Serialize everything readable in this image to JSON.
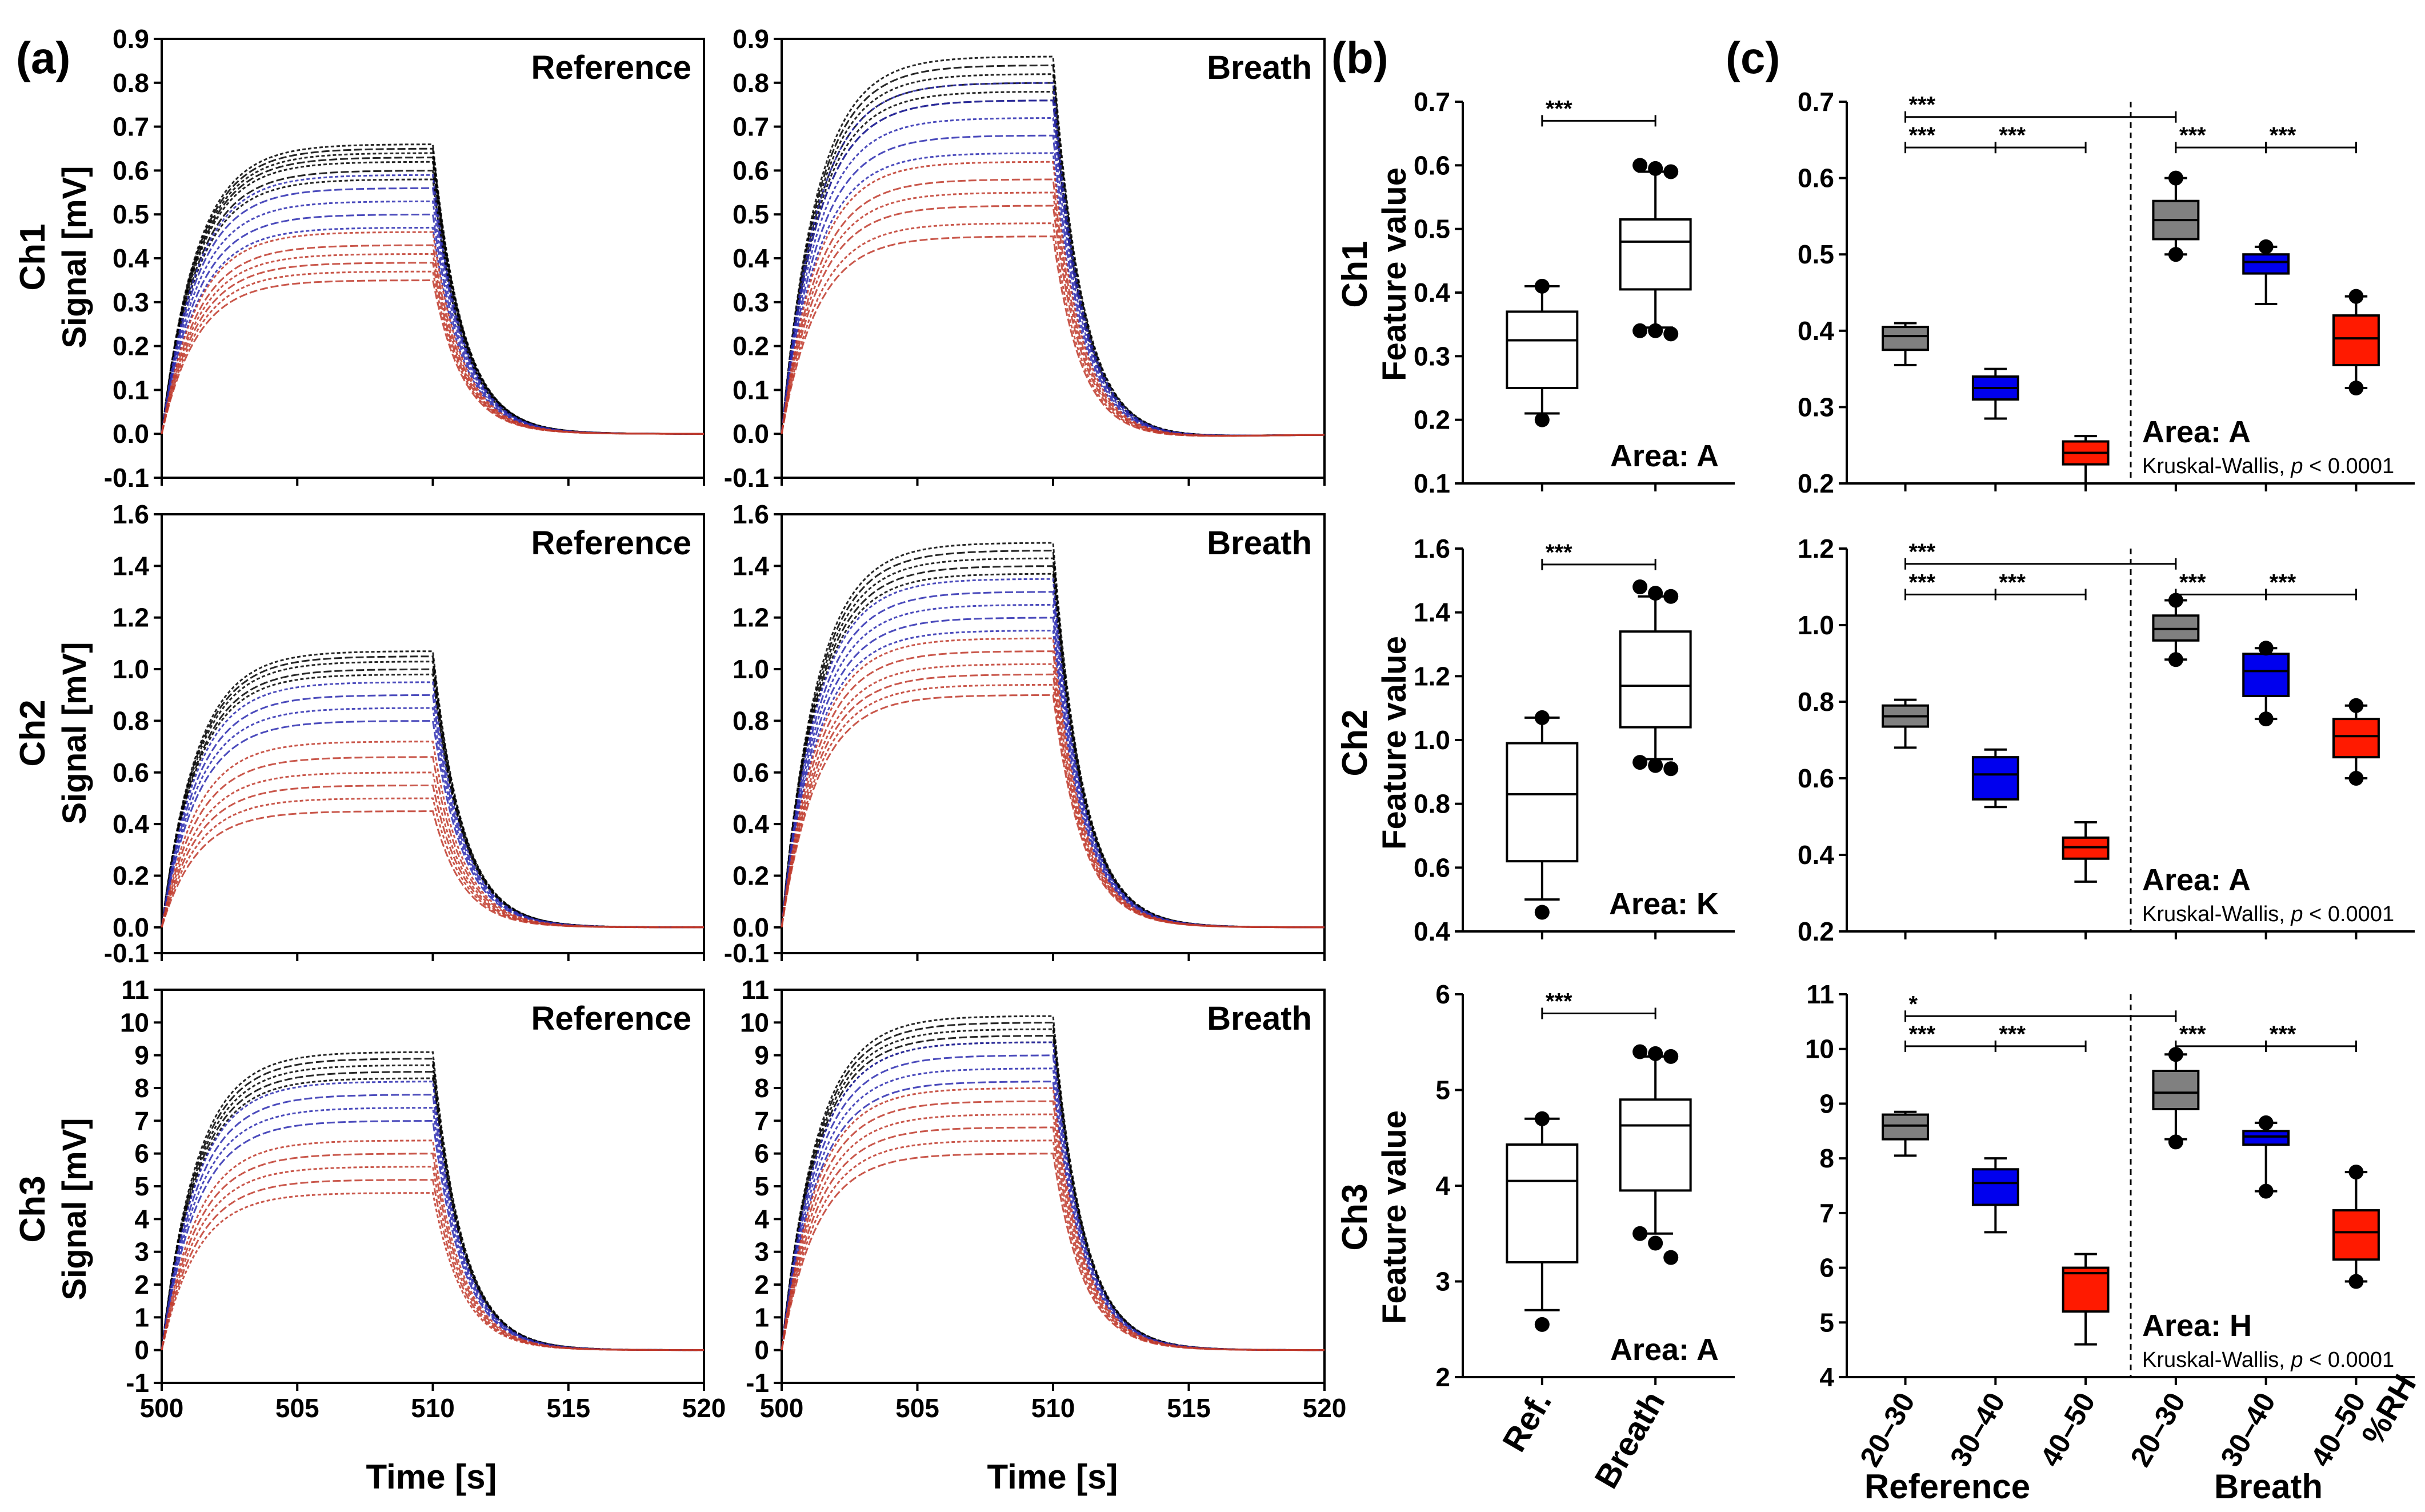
{
  "figure": {
    "panel_labels": [
      "(a)",
      "(b)",
      "(c)"
    ],
    "time_axis_label": "Time [s]",
    "signal_axis_label": "Signal [mV]",
    "feature_axis_label": "Feature value",
    "kruskal_prefix": "Kruskal-Wallis, ",
    "kruskal_p": "p",
    "kruskal_suffix": " < 0.0001",
    "rh_label": "%RH",
    "group_reference": "Reference",
    "group_breath": "Breath"
  },
  "colors": {
    "dry": "#000000",
    "mid": "#2b2bb0",
    "humid": "#c0392b",
    "box_gray": "#808080",
    "box_blue": "#0000ee",
    "box_red": "#ff1a00"
  },
  "chart_data": [
    {
      "type": "line",
      "panel": "a",
      "row": 0,
      "col": 0,
      "channel": "Ch1",
      "label": "Reference",
      "xlim": [
        500,
        520
      ],
      "ylim": [
        -0.1,
        0.9
      ],
      "xticks": [
        "500",
        "505",
        "510",
        "515",
        "520"
      ],
      "yticks": [
        "-0.1",
        "0.0",
        "0.1",
        "0.2",
        "0.3",
        "0.4",
        "0.5",
        "0.6",
        "0.7",
        "0.8",
        "0.9"
      ],
      "show_xticks": false,
      "step_off": 510,
      "groups": [
        {
          "color": "dry",
          "plateaus": [
            0.66,
            0.65,
            0.64,
            0.63,
            0.62,
            0.6,
            0.58
          ]
        },
        {
          "color": "mid",
          "plateaus": [
            0.59,
            0.56,
            0.53,
            0.5,
            0.47
          ]
        },
        {
          "color": "humid",
          "plateaus": [
            0.46,
            0.43,
            0.41,
            0.39,
            0.37,
            0.35
          ]
        }
      ],
      "undershoot": 0.0
    },
    {
      "type": "line",
      "panel": "a",
      "row": 0,
      "col": 1,
      "channel": "Ch1",
      "label": "Breath",
      "xlim": [
        500,
        520
      ],
      "ylim": [
        -0.1,
        0.9
      ],
      "xticks": [
        "500",
        "505",
        "510",
        "515",
        "520"
      ],
      "yticks": [
        "-0.1",
        "0.0",
        "0.1",
        "0.2",
        "0.3",
        "0.4",
        "0.5",
        "0.6",
        "0.7",
        "0.8",
        "0.9"
      ],
      "show_xticks": false,
      "step_off": 510,
      "groups": [
        {
          "color": "dry",
          "plateaus": [
            0.86,
            0.84,
            0.82,
            0.8,
            0.78,
            0.76
          ]
        },
        {
          "color": "mid",
          "plateaus": [
            0.8,
            0.76,
            0.72,
            0.68,
            0.64
          ]
        },
        {
          "color": "humid",
          "plateaus": [
            0.62,
            0.58,
            0.55,
            0.52,
            0.48,
            0.45
          ]
        }
      ],
      "undershoot": 0.03
    },
    {
      "type": "line",
      "panel": "a",
      "row": 1,
      "col": 0,
      "channel": "Ch2",
      "label": "Reference",
      "xlim": [
        500,
        520
      ],
      "ylim": [
        -0.1,
        1.6
      ],
      "xticks": [
        "500",
        "505",
        "510",
        "515",
        "520"
      ],
      "yticks": [
        "-0.1",
        "0.0",
        "0.2",
        "0.4",
        "0.6",
        "0.8",
        "1.0",
        "1.2",
        "1.4",
        "1.6"
      ],
      "show_xticks": false,
      "step_off": 510,
      "groups": [
        {
          "color": "dry",
          "plateaus": [
            1.07,
            1.05,
            1.03,
            1.0,
            0.98
          ]
        },
        {
          "color": "mid",
          "plateaus": [
            0.95,
            0.9,
            0.85,
            0.8
          ]
        },
        {
          "color": "humid",
          "plateaus": [
            0.72,
            0.66,
            0.6,
            0.55,
            0.5,
            0.45
          ]
        }
      ],
      "undershoot": 0.0
    },
    {
      "type": "line",
      "panel": "a",
      "row": 1,
      "col": 1,
      "channel": "Ch2",
      "label": "Breath",
      "xlim": [
        500,
        520
      ],
      "ylim": [
        -0.1,
        1.6
      ],
      "xticks": [
        "500",
        "505",
        "510",
        "515",
        "520"
      ],
      "yticks": [
        "-0.1",
        "0.0",
        "0.2",
        "0.4",
        "0.6",
        "0.8",
        "1.0",
        "1.2",
        "1.4",
        "1.6"
      ],
      "show_xticks": false,
      "step_off": 510,
      "groups": [
        {
          "color": "dry",
          "plateaus": [
            1.49,
            1.46,
            1.43,
            1.4,
            1.37
          ]
        },
        {
          "color": "mid",
          "plateaus": [
            1.35,
            1.3,
            1.25,
            1.2,
            1.15
          ]
        },
        {
          "color": "humid",
          "plateaus": [
            1.12,
            1.07,
            1.02,
            0.98,
            0.94,
            0.9
          ]
        }
      ],
      "undershoot": 0.0
    },
    {
      "type": "line",
      "panel": "a",
      "row": 2,
      "col": 0,
      "channel": "Ch3",
      "label": "Reference",
      "xlim": [
        500,
        520
      ],
      "ylim": [
        -1,
        11
      ],
      "xticks": [
        "500",
        "505",
        "510",
        "515",
        "520"
      ],
      "yticks": [
        "-1",
        "0",
        "1",
        "2",
        "3",
        "4",
        "5",
        "6",
        "7",
        "8",
        "9",
        "10",
        "11"
      ],
      "show_xticks": true,
      "step_off": 510,
      "groups": [
        {
          "color": "dry",
          "plateaus": [
            9.1,
            8.9,
            8.7,
            8.5,
            8.3
          ]
        },
        {
          "color": "mid",
          "plateaus": [
            8.2,
            7.8,
            7.4,
            7.0
          ]
        },
        {
          "color": "humid",
          "plateaus": [
            6.4,
            6.0,
            5.6,
            5.2,
            4.8
          ]
        }
      ],
      "undershoot": 0.0
    },
    {
      "type": "line",
      "panel": "a",
      "row": 2,
      "col": 1,
      "channel": "Ch3",
      "label": "Breath",
      "xlim": [
        500,
        520
      ],
      "ylim": [
        -1,
        11
      ],
      "xticks": [
        "500",
        "505",
        "510",
        "515",
        "520"
      ],
      "yticks": [
        "-1",
        "0",
        "1",
        "2",
        "3",
        "4",
        "5",
        "6",
        "7",
        "8",
        "9",
        "10",
        "11"
      ],
      "show_xticks": true,
      "step_off": 510,
      "groups": [
        {
          "color": "dry",
          "plateaus": [
            10.2,
            10.0,
            9.8,
            9.6,
            9.4
          ]
        },
        {
          "color": "mid",
          "plateaus": [
            9.4,
            9.0,
            8.6,
            8.2
          ]
        },
        {
          "color": "humid",
          "plateaus": [
            8.0,
            7.6,
            7.2,
            6.8,
            6.4,
            6.0
          ]
        }
      ],
      "undershoot": 0.0
    },
    {
      "type": "box",
      "panel": "b",
      "row": 0,
      "channel": "Ch1",
      "ylim": [
        0.1,
        0.7
      ],
      "yticks": [
        "0.1",
        "0.2",
        "0.3",
        "0.4",
        "0.5",
        "0.6",
        "0.7"
      ],
      "categories": [
        "Ref.",
        "Breath"
      ],
      "show_categories": false,
      "boxes": [
        {
          "q1": 0.25,
          "median": 0.325,
          "q3": 0.37,
          "wlow": 0.21,
          "whigh": 0.41,
          "outliers": [
            0.2,
            0.41
          ]
        },
        {
          "q1": 0.405,
          "median": 0.48,
          "q3": 0.515,
          "wlow": 0.345,
          "whigh": 0.59,
          "outliers": [
            0.34,
            0.34,
            0.335,
            0.6,
            0.595,
            0.59
          ]
        }
      ],
      "significance": [
        {
          "from": 0,
          "to": 1,
          "y": 0.67,
          "text": "***"
        }
      ],
      "area": "Area: A"
    },
    {
      "type": "box",
      "panel": "b",
      "row": 1,
      "channel": "Ch2",
      "ylim": [
        0.4,
        1.6
      ],
      "yticks": [
        "0.4",
        "0.6",
        "0.8",
        "1.0",
        "1.2",
        "1.4",
        "1.6"
      ],
      "categories": [
        "Ref.",
        "Breath"
      ],
      "show_categories": false,
      "boxes": [
        {
          "q1": 0.62,
          "median": 0.83,
          "q3": 0.99,
          "wlow": 0.5,
          "whigh": 1.07,
          "outliers": [
            0.46,
            1.07
          ]
        },
        {
          "q1": 1.04,
          "median": 1.17,
          "q3": 1.34,
          "wlow": 0.94,
          "whigh": 1.45,
          "outliers": [
            0.93,
            0.92,
            0.91,
            1.48,
            1.46,
            1.45
          ]
        }
      ],
      "significance": [
        {
          "from": 0,
          "to": 1,
          "y": 1.55,
          "text": "***"
        }
      ],
      "area": "Area: K"
    },
    {
      "type": "box",
      "panel": "b",
      "row": 2,
      "channel": "Ch3",
      "ylim": [
        2,
        6
      ],
      "yticks": [
        "2",
        "3",
        "4",
        "5",
        "6"
      ],
      "categories": [
        "Ref.",
        "Breath"
      ],
      "show_categories": true,
      "boxes": [
        {
          "q1": 3.2,
          "median": 4.05,
          "q3": 4.43,
          "wlow": 2.7,
          "whigh": 4.7,
          "outliers": [
            2.55,
            4.7
          ]
        },
        {
          "q1": 3.95,
          "median": 4.63,
          "q3": 4.9,
          "wlow": 3.5,
          "whigh": 5.35,
          "outliers": [
            3.5,
            3.4,
            3.25,
            5.4,
            5.38,
            5.35
          ]
        }
      ],
      "significance": [
        {
          "from": 0,
          "to": 1,
          "y": 5.8,
          "text": "***"
        }
      ],
      "area": "Area: A"
    },
    {
      "type": "box",
      "panel": "c",
      "row": 0,
      "channel": "Ch1",
      "ylim": [
        0.2,
        0.7
      ],
      "yticks": [
        "0.2",
        "0.3",
        "0.4",
        "0.5",
        "0.6",
        "0.7"
      ],
      "categories": [
        "20–30",
        "30–40",
        "40–50",
        "20–30",
        "30–40",
        "40–50"
      ],
      "show_categories": false,
      "boxes": [
        {
          "fill": "box_gray",
          "q1": 0.375,
          "median": 0.393,
          "q3": 0.405,
          "wlow": 0.355,
          "whigh": 0.41,
          "outliers": []
        },
        {
          "fill": "box_blue",
          "q1": 0.31,
          "median": 0.325,
          "q3": 0.34,
          "wlow": 0.285,
          "whigh": 0.35,
          "outliers": []
        },
        {
          "fill": "box_red",
          "q1": 0.225,
          "median": 0.24,
          "q3": 0.255,
          "wlow": 0.2,
          "whigh": 0.262,
          "outliers": []
        },
        {
          "fill": "box_gray",
          "q1": 0.52,
          "median": 0.545,
          "q3": 0.57,
          "wlow": 0.5,
          "whigh": 0.6,
          "outliers": [
            0.5,
            0.6
          ]
        },
        {
          "fill": "box_blue",
          "q1": 0.475,
          "median": 0.49,
          "q3": 0.5,
          "wlow": 0.435,
          "whigh": 0.51,
          "outliers": [
            0.51
          ]
        },
        {
          "fill": "box_red",
          "q1": 0.355,
          "median": 0.39,
          "q3": 0.42,
          "wlow": 0.325,
          "whigh": 0.445,
          "outliers": [
            0.445,
            0.325
          ]
        }
      ],
      "significance": [
        {
          "from": 0,
          "to": 3,
          "y": 0.68,
          "text": "***"
        },
        {
          "from": 0,
          "to": 1,
          "y": 0.64,
          "text": "***"
        },
        {
          "from": 1,
          "to": 2,
          "y": 0.64,
          "text": "***"
        },
        {
          "from": 3,
          "to": 4,
          "y": 0.64,
          "text": "***"
        },
        {
          "from": 4,
          "to": 5,
          "y": 0.64,
          "text": "***"
        }
      ],
      "area": "Area: A",
      "kruskal": true
    },
    {
      "type": "box",
      "panel": "c",
      "row": 1,
      "channel": "Ch2",
      "ylim": [
        0.2,
        1.2
      ],
      "yticks": [
        "0.2",
        "0.4",
        "0.6",
        "0.8",
        "1.0",
        "1.2"
      ],
      "categories": [
        "20–30",
        "30–40",
        "40–50",
        "20–30",
        "30–40",
        "40–50"
      ],
      "show_categories": false,
      "boxes": [
        {
          "fill": "box_gray",
          "q1": 0.735,
          "median": 0.762,
          "q3": 0.79,
          "wlow": 0.68,
          "whigh": 0.805,
          "outliers": []
        },
        {
          "fill": "box_blue",
          "q1": 0.545,
          "median": 0.61,
          "q3": 0.655,
          "wlow": 0.525,
          "whigh": 0.675,
          "outliers": []
        },
        {
          "fill": "box_red",
          "q1": 0.39,
          "median": 0.42,
          "q3": 0.445,
          "wlow": 0.33,
          "whigh": 0.485,
          "outliers": []
        },
        {
          "fill": "box_gray",
          "q1": 0.96,
          "median": 0.99,
          "q3": 1.025,
          "wlow": 0.91,
          "whigh": 1.065,
          "outliers": [
            0.91,
            1.065
          ]
        },
        {
          "fill": "box_blue",
          "q1": 0.815,
          "median": 0.88,
          "q3": 0.925,
          "wlow": 0.755,
          "whigh": 0.94,
          "outliers": [
            0.755,
            0.94
          ]
        },
        {
          "fill": "box_red",
          "q1": 0.655,
          "median": 0.71,
          "q3": 0.755,
          "wlow": 0.6,
          "whigh": 0.79,
          "outliers": [
            0.6,
            0.79
          ]
        }
      ],
      "significance": [
        {
          "from": 0,
          "to": 3,
          "y": 1.16,
          "text": "***"
        },
        {
          "from": 0,
          "to": 1,
          "y": 1.08,
          "text": "***"
        },
        {
          "from": 1,
          "to": 2,
          "y": 1.08,
          "text": "***"
        },
        {
          "from": 3,
          "to": 4,
          "y": 1.08,
          "text": "***"
        },
        {
          "from": 4,
          "to": 5,
          "y": 1.08,
          "text": "***"
        }
      ],
      "area": "Area: A",
      "kruskal": true
    },
    {
      "type": "box",
      "panel": "c",
      "row": 2,
      "channel": "Ch3",
      "ylim": [
        4,
        11
      ],
      "yticks": [
        "4",
        "5",
        "6",
        "7",
        "8",
        "9",
        "10",
        "11"
      ],
      "categories": [
        "20–30",
        "30–40",
        "40–50",
        "20–30",
        "30–40",
        "40–50"
      ],
      "show_categories": true,
      "boxes": [
        {
          "fill": "box_gray",
          "q1": 8.35,
          "median": 8.6,
          "q3": 8.8,
          "wlow": 8.05,
          "whigh": 8.85,
          "outliers": []
        },
        {
          "fill": "box_blue",
          "q1": 7.15,
          "median": 7.55,
          "q3": 7.8,
          "wlow": 6.65,
          "whigh": 8.0,
          "outliers": []
        },
        {
          "fill": "box_red",
          "q1": 5.2,
          "median": 5.9,
          "q3": 6.0,
          "wlow": 4.6,
          "whigh": 6.25,
          "outliers": []
        },
        {
          "fill": "box_gray",
          "q1": 8.9,
          "median": 9.2,
          "q3": 9.6,
          "wlow": 8.35,
          "whigh": 9.9,
          "outliers": [
            8.3,
            9.9
          ]
        },
        {
          "fill": "box_blue",
          "q1": 8.25,
          "median": 8.4,
          "q3": 8.5,
          "wlow": 7.4,
          "whigh": 8.65,
          "outliers": [
            7.4,
            8.65
          ]
        },
        {
          "fill": "box_red",
          "q1": 6.15,
          "median": 6.65,
          "q3": 7.05,
          "wlow": 5.75,
          "whigh": 7.75,
          "outliers": [
            5.75,
            7.75
          ]
        }
      ],
      "significance": [
        {
          "from": 0,
          "to": 3,
          "y": 10.6,
          "text": "*"
        },
        {
          "from": 0,
          "to": 1,
          "y": 10.05,
          "text": "***"
        },
        {
          "from": 1,
          "to": 2,
          "y": 10.05,
          "text": "***"
        },
        {
          "from": 3,
          "to": 4,
          "y": 10.05,
          "text": "***"
        },
        {
          "from": 4,
          "to": 5,
          "y": 10.05,
          "text": "***"
        }
      ],
      "area": "Area: H",
      "kruskal": true
    }
  ]
}
